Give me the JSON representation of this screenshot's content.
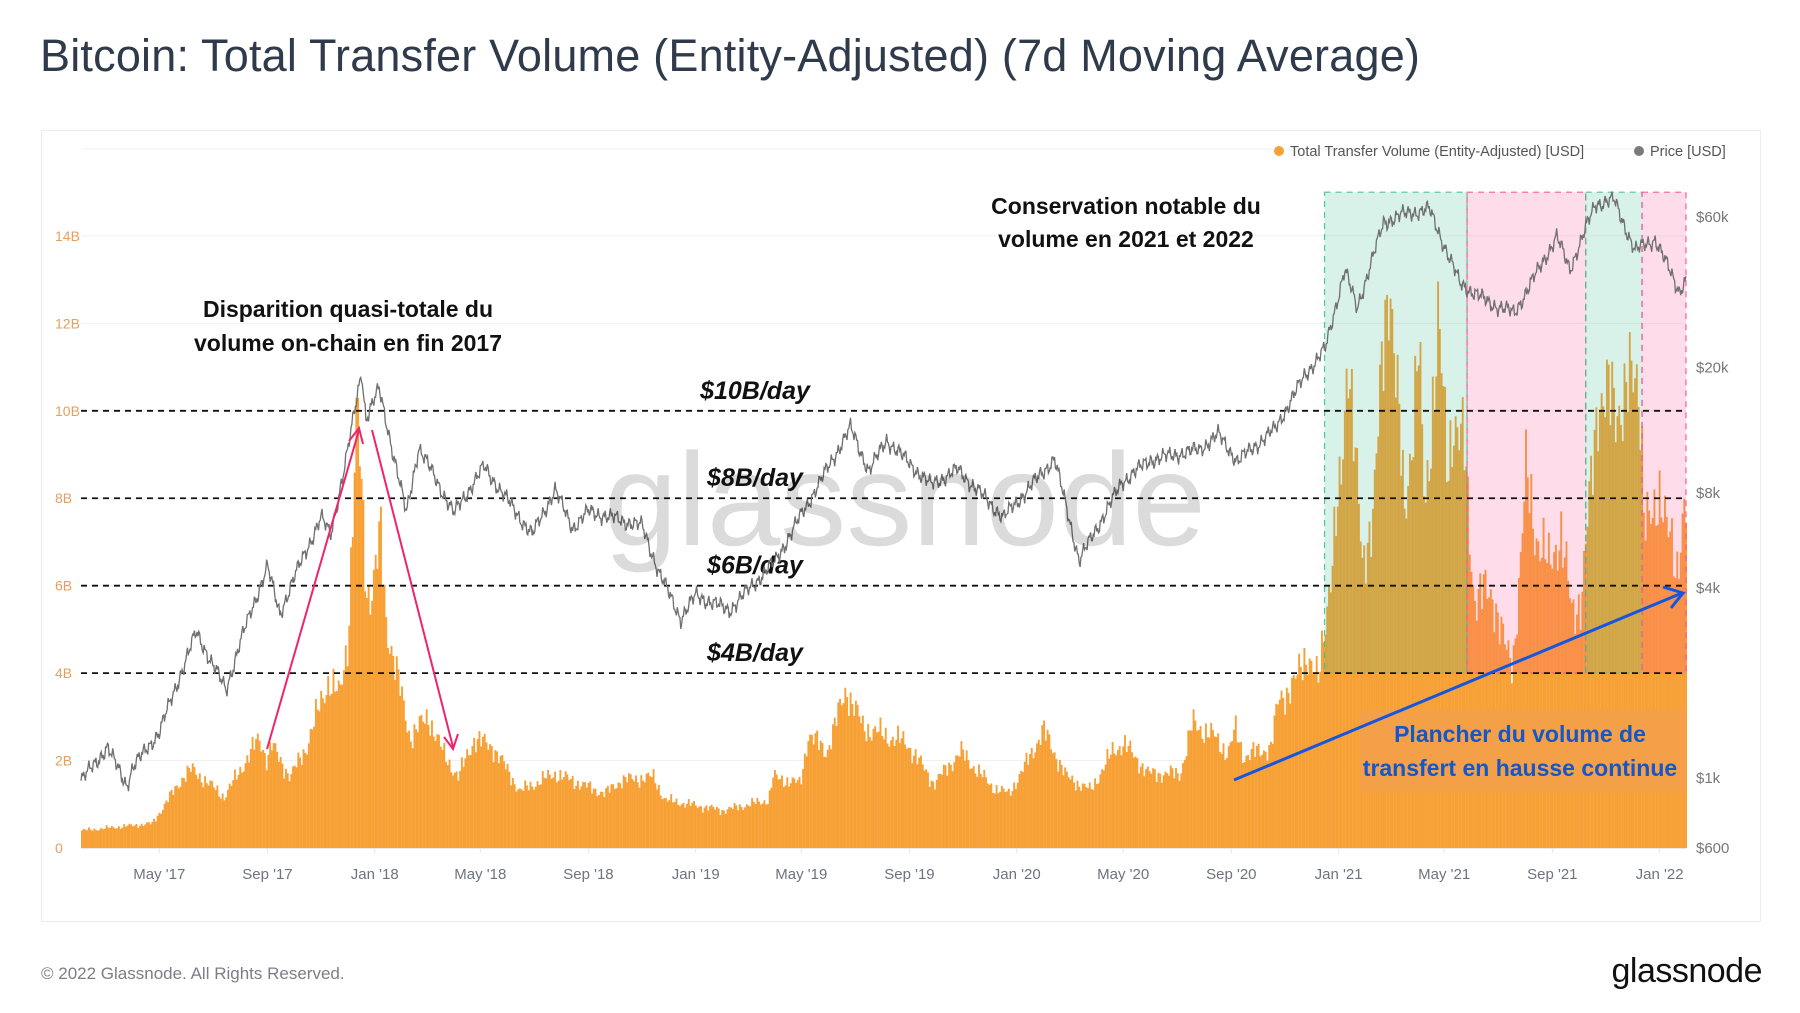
{
  "title": "Bitcoin: Total Transfer Volume (Entity-Adjusted) (7d Moving Average)",
  "footer": {
    "copyright": "© 2022 Glassnode. All Rights Reserved.",
    "logo": "glassnode"
  },
  "watermark": "glassnode",
  "chart_data": {
    "type": "bar+line",
    "legend": {
      "placement": "top-right",
      "items": [
        {
          "name": "Total Transfer Volume (Entity-Adjusted) [USD]",
          "color": "#f7a035"
        },
        {
          "name": "Price [USD]",
          "color": "#7a7a7a"
        }
      ]
    },
    "x_range": [
      "2017-02-01",
      "2022-01-31"
    ],
    "x_ticks": [
      {
        "label": "May '17",
        "date": "2017-05-01"
      },
      {
        "label": "Sep '17",
        "date": "2017-09-01"
      },
      {
        "label": "Jan '18",
        "date": "2018-01-01"
      },
      {
        "label": "May '18",
        "date": "2018-05-01"
      },
      {
        "label": "Sep '18",
        "date": "2018-09-01"
      },
      {
        "label": "Jan '19",
        "date": "2019-01-01"
      },
      {
        "label": "May '19",
        "date": "2019-05-01"
      },
      {
        "label": "Sep '19",
        "date": "2019-09-01"
      },
      {
        "label": "Jan '20",
        "date": "2020-01-01"
      },
      {
        "label": "May '20",
        "date": "2020-05-01"
      },
      {
        "label": "Sep '20",
        "date": "2020-09-01"
      },
      {
        "label": "Jan '21",
        "date": "2021-01-01"
      },
      {
        "label": "May '21",
        "date": "2021-05-01"
      },
      {
        "label": "Sep '21",
        "date": "2021-09-01"
      },
      {
        "label": "Jan '22",
        "date": "2022-01-01"
      }
    ],
    "y_left": {
      "unit": "USD billions",
      "range": [
        0,
        14
      ],
      "ticks": [
        {
          "label": "0",
          "value": 0
        },
        {
          "label": "2B",
          "value": 2
        },
        {
          "label": "4B",
          "value": 4
        },
        {
          "label": "6B",
          "value": 6
        },
        {
          "label": "8B",
          "value": 8
        },
        {
          "label": "10B",
          "value": 10
        },
        {
          "label": "12B",
          "value": 12
        },
        {
          "label": "14B",
          "value": 14
        }
      ]
    },
    "y_right": {
      "scale": "log",
      "range": [
        600,
        60000
      ],
      "ticks": [
        {
          "label": "$600",
          "value": 600
        },
        {
          "label": "$1k",
          "value": 1000
        },
        {
          "label": "$4k",
          "value": 4000
        },
        {
          "label": "$8k",
          "value": 8000
        },
        {
          "label": "$20k",
          "value": 20000
        },
        {
          "label": "$60k",
          "value": 60000
        }
      ]
    },
    "grid": true,
    "volume_series": [
      [
        "2017-02-01",
        0.4
      ],
      [
        "2017-04-22",
        0.56
      ],
      [
        "2017-05-27",
        1.62
      ],
      [
        "2017-06-06",
        1.8
      ],
      [
        "2017-07-13",
        1.17
      ],
      [
        "2017-08-18",
        2.39
      ],
      [
        "2017-08-22",
        2.5
      ],
      [
        "2017-08-31",
        2.0
      ],
      [
        "2017-09-04",
        2.37
      ],
      [
        "2017-09-26",
        1.62
      ],
      [
        "2017-10-14",
        2.3
      ],
      [
        "2017-11-08",
        3.84
      ],
      [
        "2017-11-21",
        3.46
      ],
      [
        "2017-12-01",
        4.89
      ],
      [
        "2017-12-07",
        8.1
      ],
      [
        "2017-12-11",
        10.0
      ],
      [
        "2017-12-22",
        5.9
      ],
      [
        "2017-12-28",
        5.9
      ],
      [
        "2018-01-07",
        7.1
      ],
      [
        "2018-01-13",
        5.2
      ],
      [
        "2018-01-26",
        3.9
      ],
      [
        "2018-02-09",
        2.54
      ],
      [
        "2018-03-02",
        3.0
      ],
      [
        "2018-03-19",
        2.16
      ],
      [
        "2018-04-05",
        1.62
      ],
      [
        "2018-04-23",
        2.5
      ],
      [
        "2018-05-15",
        2.3
      ],
      [
        "2018-06-14",
        1.3
      ],
      [
        "2018-07-24",
        1.7
      ],
      [
        "2018-09-19",
        1.24
      ],
      [
        "2018-10-07",
        1.55
      ],
      [
        "2018-11-13",
        1.62
      ],
      [
        "2018-11-26",
        1.1
      ],
      [
        "2019-01-31",
        0.86
      ],
      [
        "2019-03-24",
        1.1
      ],
      [
        "2019-03-29",
        1.62
      ],
      [
        "2019-04-29",
        1.47
      ],
      [
        "2019-05-08",
        2.6
      ],
      [
        "2019-05-29",
        2.2
      ],
      [
        "2019-06-20",
        3.64
      ],
      [
        "2019-07-09",
        2.77
      ],
      [
        "2019-08-08",
        2.54
      ],
      [
        "2019-08-28",
        2.4
      ],
      [
        "2019-09-28",
        1.47
      ],
      [
        "2019-10-28",
        2.2
      ],
      [
        "2019-12-03",
        1.4
      ],
      [
        "2019-12-22",
        1.24
      ],
      [
        "2020-01-07",
        1.78
      ],
      [
        "2020-01-30",
        2.7
      ],
      [
        "2020-02-26",
        1.62
      ],
      [
        "2020-03-24",
        1.32
      ],
      [
        "2020-04-18",
        2.2
      ],
      [
        "2020-04-30",
        2.4
      ],
      [
        "2020-05-29",
        1.7
      ],
      [
        "2020-07-04",
        1.7
      ],
      [
        "2020-07-18",
        2.85
      ],
      [
        "2020-08-12",
        2.54
      ],
      [
        "2020-08-27",
        2.16
      ],
      [
        "2020-09-05",
        2.7
      ],
      [
        "2020-09-14",
        2.1
      ],
      [
        "2020-10-15",
        2.3
      ],
      [
        "2020-10-24",
        3.4
      ],
      [
        "2020-11-11",
        3.75
      ],
      [
        "2020-11-25",
        4.5
      ],
      [
        "2020-12-08",
        3.75
      ],
      [
        "2020-12-16",
        5.3
      ],
      [
        "2020-12-21",
        6.2
      ],
      [
        "2021-01-03",
        8.3
      ],
      [
        "2021-01-11",
        11.7
      ],
      [
        "2021-01-27",
        6.3
      ],
      [
        "2021-02-09",
        8.0
      ],
      [
        "2021-02-27",
        13.4
      ],
      [
        "2021-03-16",
        7.5
      ],
      [
        "2021-04-01",
        11.5
      ],
      [
        "2021-04-08",
        7.5
      ],
      [
        "2021-04-23",
        12.1
      ],
      [
        "2021-05-04",
        8.5
      ],
      [
        "2021-05-10",
        10.0
      ],
      [
        "2021-05-23",
        9.0
      ],
      [
        "2021-06-03",
        5.8
      ],
      [
        "2021-06-25",
        5.8
      ],
      [
        "2021-07-09",
        4.5
      ],
      [
        "2021-07-17",
        4.2
      ],
      [
        "2021-07-26",
        6.6
      ],
      [
        "2021-08-01",
        8.5
      ],
      [
        "2021-08-13",
        7.2
      ],
      [
        "2021-08-27",
        6.4
      ],
      [
        "2021-09-09",
        7.3
      ],
      [
        "2021-09-22",
        5.4
      ],
      [
        "2021-10-03",
        5.7
      ],
      [
        "2021-10-13",
        8.0
      ],
      [
        "2021-10-22",
        10.4
      ],
      [
        "2021-11-11",
        10.1
      ],
      [
        "2021-12-08",
        10.8
      ],
      [
        "2021-12-14",
        7.57
      ],
      [
        "2021-12-23",
        7.27
      ],
      [
        "2022-01-02",
        8.4
      ],
      [
        "2022-01-11",
        7.1
      ],
      [
        "2022-01-19",
        6.0
      ],
      [
        "2022-01-28",
        8.2
      ],
      [
        "2022-01-31",
        8.0
      ]
    ],
    "price_series": [
      [
        "2017-02-01",
        980
      ],
      [
        "2017-03-03",
        1250
      ],
      [
        "2017-03-25",
        950
      ],
      [
        "2017-04-01",
        1080
      ],
      [
        "2017-05-01",
        1400
      ],
      [
        "2017-06-01",
        2400
      ],
      [
        "2017-06-12",
        2900
      ],
      [
        "2017-07-16",
        1900
      ],
      [
        "2017-08-01",
        2700
      ],
      [
        "2017-09-01",
        4700
      ],
      [
        "2017-09-15",
        3300
      ],
      [
        "2017-10-01",
        4300
      ],
      [
        "2017-11-01",
        6700
      ],
      [
        "2017-11-12",
        5900
      ],
      [
        "2017-12-01",
        10800
      ],
      [
        "2017-12-17",
        19500
      ],
      [
        "2017-12-22",
        13800
      ],
      [
        "2018-01-06",
        17100
      ],
      [
        "2018-02-06",
        6900
      ],
      [
        "2018-02-20",
        11200
      ],
      [
        "2018-04-01",
        6900
      ],
      [
        "2018-05-05",
        9700
      ],
      [
        "2018-06-29",
        5900
      ],
      [
        "2018-07-25",
        8200
      ],
      [
        "2018-08-14",
        6200
      ],
      [
        "2018-09-01",
        7000
      ],
      [
        "2018-11-01",
        6300
      ],
      [
        "2018-11-20",
        4500
      ],
      [
        "2018-12-15",
        3200
      ],
      [
        "2019-01-01",
        3800
      ],
      [
        "2019-02-08",
        3400
      ],
      [
        "2019-04-02",
        4900
      ],
      [
        "2019-05-15",
        8000
      ],
      [
        "2019-06-26",
        12900
      ],
      [
        "2019-07-17",
        9400
      ],
      [
        "2019-08-06",
        11800
      ],
      [
        "2019-09-25",
        8500
      ],
      [
        "2019-10-26",
        9500
      ],
      [
        "2019-12-17",
        6700
      ],
      [
        "2020-02-13",
        10300
      ],
      [
        "2020-03-12",
        4900
      ],
      [
        "2020-04-30",
        8700
      ],
      [
        "2020-06-01",
        10200
      ],
      [
        "2020-07-27",
        11000
      ],
      [
        "2020-08-17",
        12300
      ],
      [
        "2020-09-08",
        10100
      ],
      [
        "2020-10-21",
        12800
      ],
      [
        "2020-11-24",
        19000
      ],
      [
        "2020-12-17",
        23000
      ],
      [
        "2021-01-08",
        41000
      ],
      [
        "2021-01-22",
        30800
      ],
      [
        "2021-02-21",
        57500
      ],
      [
        "2021-03-13",
        61000
      ],
      [
        "2021-04-14",
        63500
      ],
      [
        "2021-05-19",
        37000
      ],
      [
        "2021-06-22",
        32000
      ],
      [
        "2021-07-20",
        29800
      ],
      [
        "2021-09-06",
        52000
      ],
      [
        "2021-09-21",
        41000
      ],
      [
        "2021-10-20",
        66000
      ],
      [
        "2021-11-10",
        68000
      ],
      [
        "2021-12-04",
        47000
      ],
      [
        "2021-12-27",
        51000
      ],
      [
        "2022-01-23",
        35000
      ],
      [
        "2022-01-31",
        38000
      ]
    ],
    "reference_lines": [
      {
        "value": 10,
        "label": "$10B/day"
      },
      {
        "value": 8,
        "label": "$8B/day"
      },
      {
        "value": 6,
        "label": "$6B/day"
      },
      {
        "value": 4,
        "label": "$4B/day"
      }
    ],
    "highlight_regions": [
      {
        "start": "2020-12-16",
        "end": "2021-05-27",
        "from": 4,
        "to": 15,
        "color": "#3fbf8f"
      },
      {
        "start": "2021-05-27",
        "end": "2021-10-09",
        "from": 4,
        "to": 15,
        "color": "#ff4f8f"
      },
      {
        "start": "2021-10-09",
        "end": "2021-12-12",
        "from": 4,
        "to": 15,
        "color": "#3fbf8f"
      },
      {
        "start": "2021-12-12",
        "end": "2022-01-31",
        "from": 4,
        "to": 15,
        "color": "#ff4f8f"
      }
    ],
    "annotations": {
      "left": [
        "Disparition quasi-totale du",
        "volume on-chain en fin 2017"
      ],
      "top": [
        "Conservation notable du",
        "volume en 2021 et 2022"
      ],
      "bottom_right": [
        "Plancher du volume de",
        "transfert en hausse continue"
      ]
    },
    "colors": {
      "volume": "#f7a035",
      "price": "#6f6f6f",
      "arrow_pink": "#f0246e",
      "arrow_blue": "#1556e0",
      "annotation_blue": "#1556c8"
    }
  }
}
